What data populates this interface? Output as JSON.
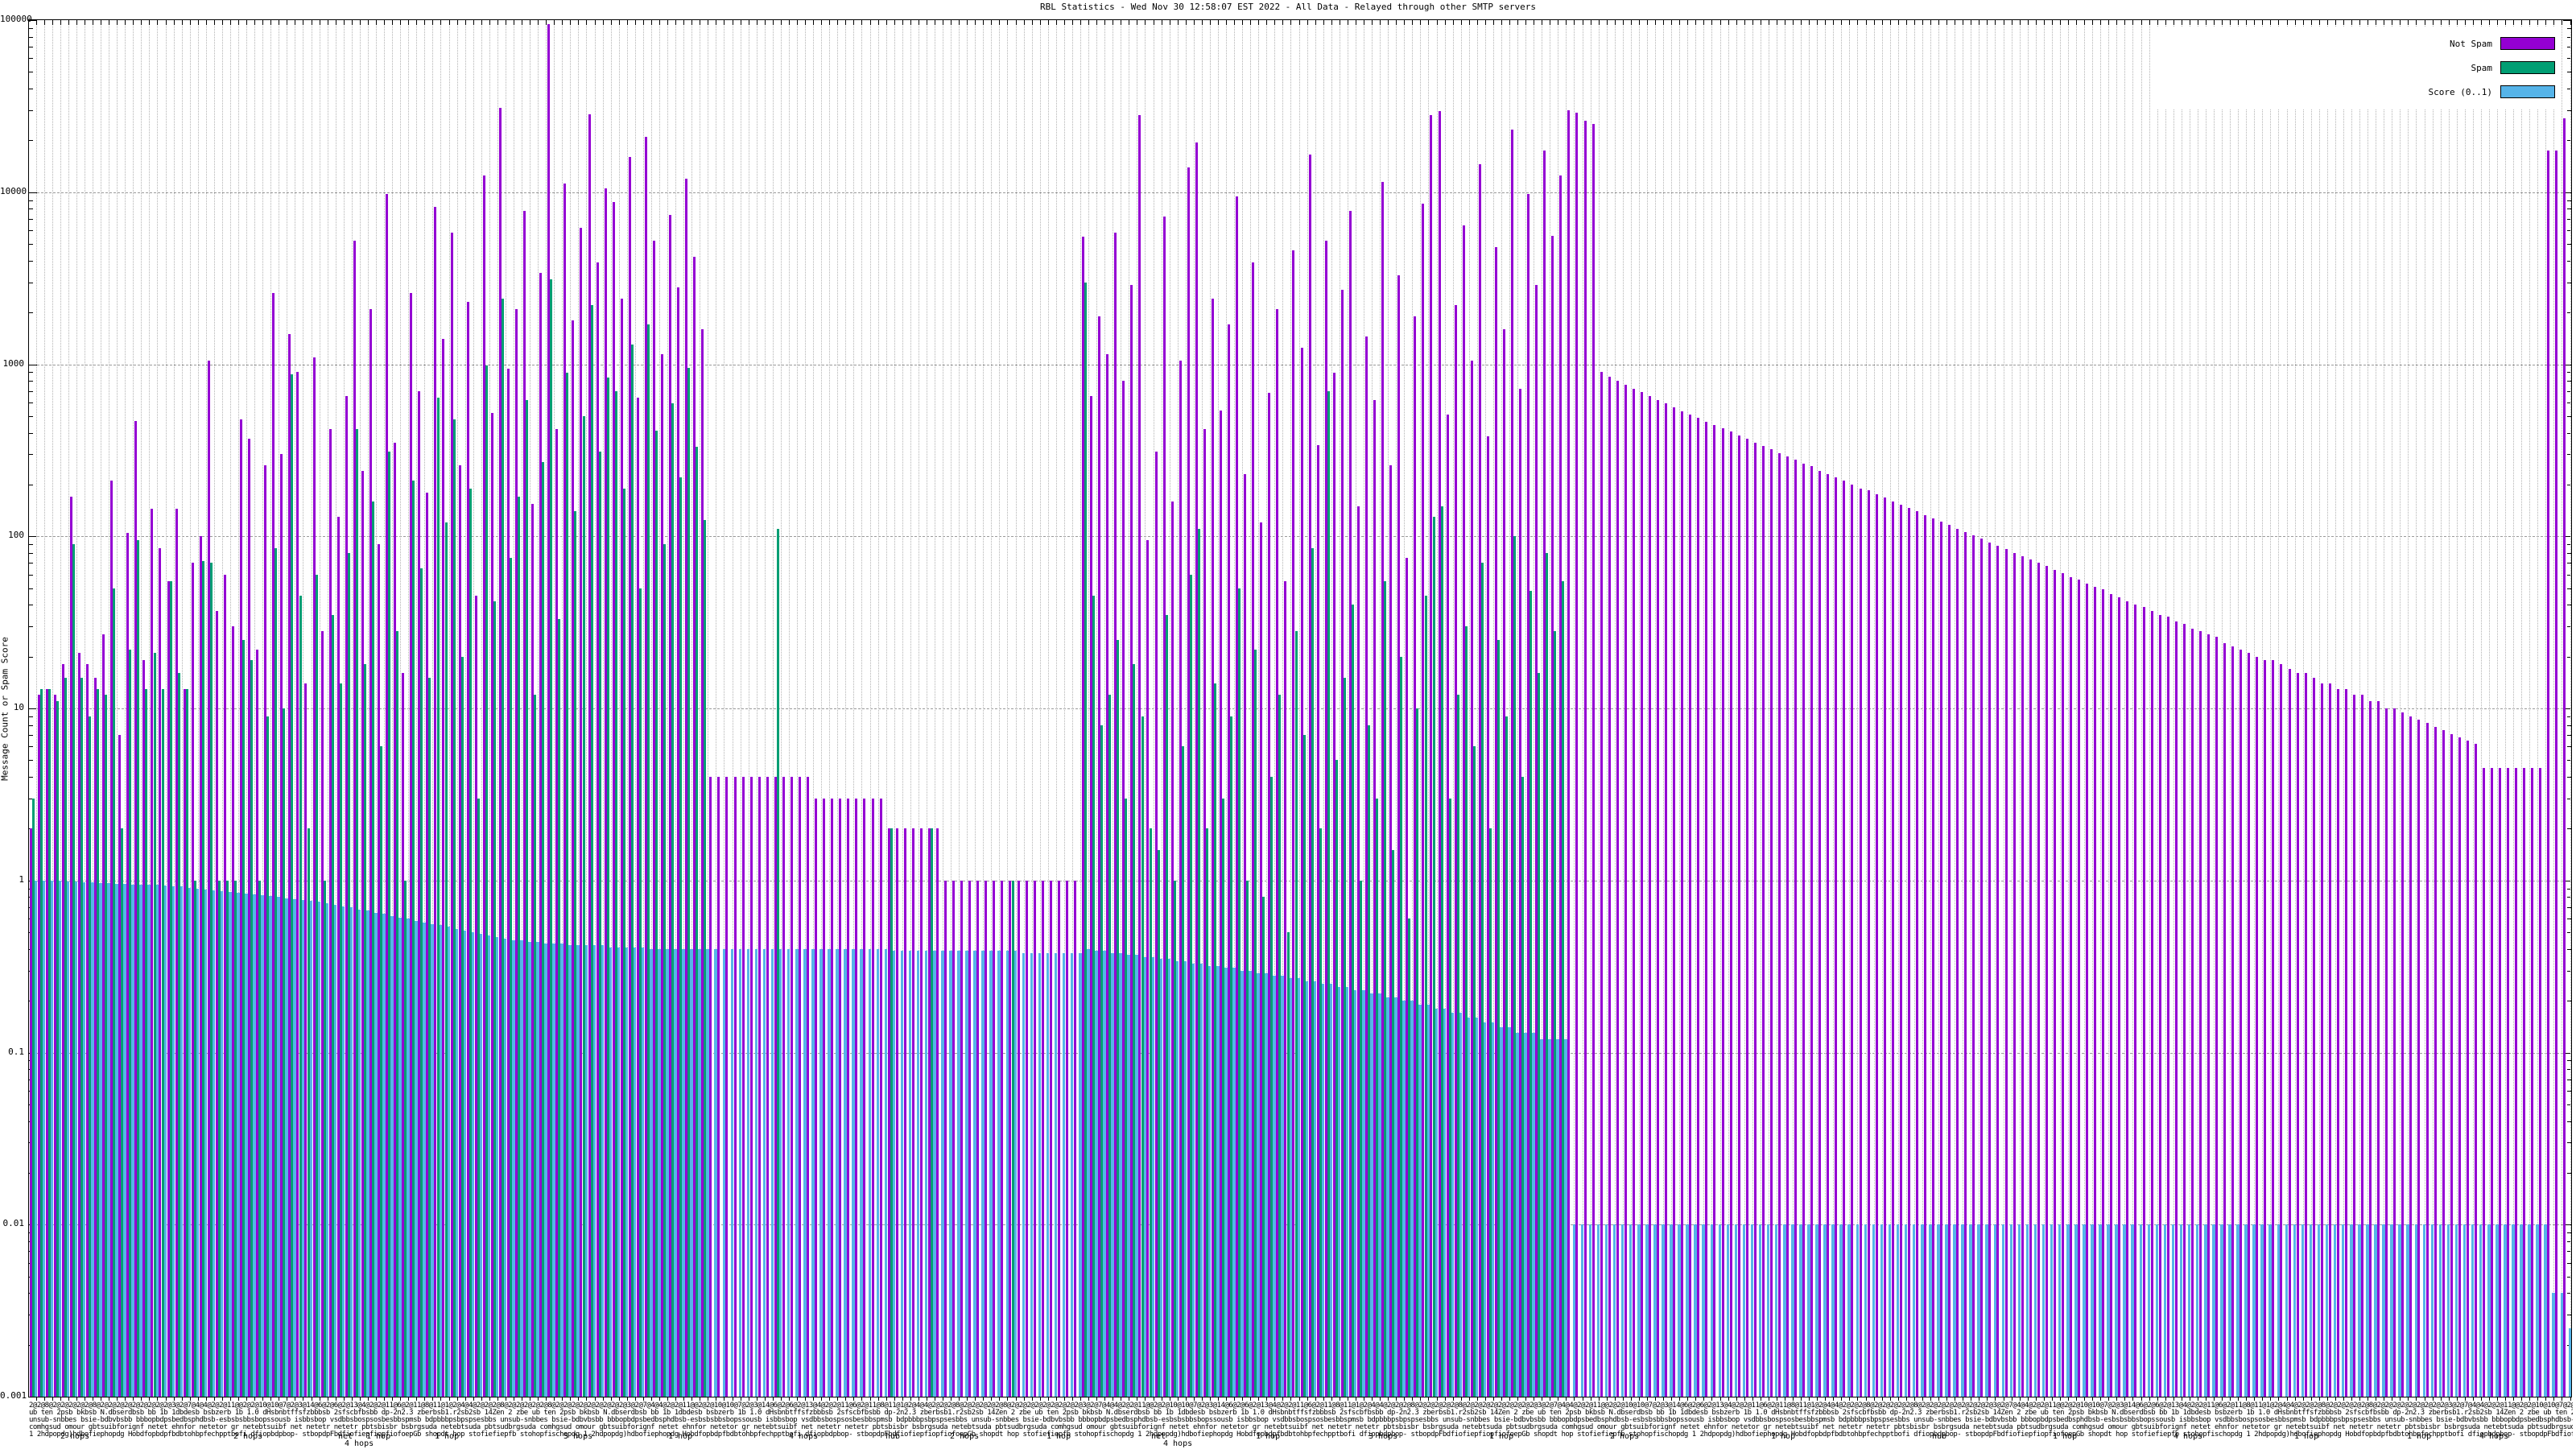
{
  "chart_data": {
    "type": "bar",
    "title": "RBL Statistics - Wed Nov 30 12:58:07 EST 2022 - All Data - Relayed through other SMTP servers",
    "ylabel": "Message Count or Spam Score",
    "xlabel": "",
    "yscale": "log",
    "ylim": [
      0.001,
      100000
    ],
    "grid": true,
    "legend_position": "top-right",
    "ytick_labels": [
      "100000",
      "10000",
      "1000",
      "100",
      "10",
      "1",
      "0.1",
      "0.01",
      "0.001"
    ],
    "legend": [
      {
        "label": "Not Spam",
        "color": "#9400D3"
      },
      {
        "label": "Spam",
        "color": "#009E73"
      },
      {
        "label": "Score (0..1)",
        "color": "#56B4E9"
      }
    ],
    "xtick_note": "hundreds of overlapping multi-line host/score labels, unreadable in source",
    "xtick_lines": [
      "2@2@8@2@2@2@2@2@8@2@2@2@2@2@2@2@2@2@3@2@7@4@4@2@2@11@@2@2@10@10@7@2@3@14@6@2@6@2@13@4@2@2@11@6@2@11@8@11@1@2@4@4@2@",
      "ub ten 2psb bkbsb N.dbserdbsb bb 1b 1dbdesb bsbzerb 1b 1.0 dHsbnbtffsfzbbbsb 2sfscbfbsbb dp-2n2.3 zberbsb1.r2sb2sb 14Zen 2 zbe ",
      "unsub-snbbes bsie-bdbvbsbb bbbopbdpsbedbsphdbsb-esbsbsbbsbopssousb isbbsbop vsdbbsbospsosbesbbspmsb bdpbbbpsbpspsesbbs ",
      "comhgsud omour gbtsuibforignf netet ehnfor netetor gr netebtsuibf net netetr netetr pbtsbisbr bsbrgsuda netebtsuda pbtsudbrgsuda ",
      "1 2hdpopdg)hdbofiephopdg Hobdfopbdpfbdbtohbpfechpptbofi dfiopbdpbop- stbopdpFbdfiofiepfiopfiofoepGb shopdt hop stofiefiepfb stohopfischopdg "
    ],
    "xtick_tokens": [
      {
        "text": "2 hops",
        "x": 75,
        "row": 0
      },
      {
        "text": "2 hops",
        "x": 290,
        "row": 0
      },
      {
        "text": "1 hop",
        "x": 455,
        "row": 0
      },
      {
        "text": "net",
        "x": 420,
        "row": 0
      },
      {
        "text": "4 hops",
        "x": 428,
        "row": 1
      },
      {
        "text": "1 hop",
        "x": 540,
        "row": 0
      },
      {
        "text": "5 hops",
        "x": 700,
        "row": 0
      },
      {
        "text": "1 hop",
        "x": 830,
        "row": 0
      },
      {
        "text": "4 hops",
        "x": 980,
        "row": 0
      },
      {
        "text": "hub",
        "x": 1100,
        "row": 0
      },
      {
        "text": "2 hops",
        "x": 1180,
        "row": 0
      },
      {
        "text": "1 hop",
        "x": 1300,
        "row": 0
      },
      {
        "text": "net",
        "x": 1430,
        "row": 0
      },
      {
        "text": "4 hops",
        "x": 1445,
        "row": 1
      },
      {
        "text": "1 hop",
        "x": 1560,
        "row": 0
      },
      {
        "text": "3 hops",
        "x": 1700,
        "row": 0
      },
      {
        "text": "1 hop",
        "x": 1850,
        "row": 0
      },
      {
        "text": "2 hops",
        "x": 2000,
        "row": 0
      },
      {
        "text": "1 hop",
        "x": 2200,
        "row": 0
      },
      {
        "text": "hub",
        "x": 2400,
        "row": 0
      },
      {
        "text": "1 hop",
        "x": 2550,
        "row": 0
      },
      {
        "text": "4 hops",
        "x": 2700,
        "row": 0
      },
      {
        "text": "1 hop",
        "x": 2850,
        "row": 0
      },
      {
        "text": "1 hop",
        "x": 2990,
        "row": 0
      },
      {
        "text": "4 hops",
        "x": 3080,
        "row": 0
      }
    ],
    "series": [
      {
        "name": "Not Spam",
        "values": [
          2,
          12,
          13,
          12,
          18,
          170,
          21,
          18,
          15,
          27,
          210,
          7,
          105,
          470,
          19,
          145,
          85,
          55,
          145,
          13,
          70,
          100,
          1050,
          37,
          60,
          30,
          480,
          370,
          22,
          260,
          2600,
          300,
          1500,
          900,
          14,
          1100,
          28,
          420,
          130,
          650,
          5200,
          240,
          2100,
          90,
          9800,
          350,
          16,
          2600,
          700,
          180,
          8200,
          1400,
          5800,
          260,
          2300,
          45,
          12500,
          520,
          31000,
          940,
          2100,
          7800,
          155,
          3400,
          95000,
          420,
          11200,
          1800,
          6200,
          28500,
          3900,
          10500,
          8800,
          2400,
          16000,
          640,
          21000,
          5200,
          1150,
          7400,
          2800,
          12000,
          4200,
          1600,
          4,
          4,
          4,
          4,
          4,
          4,
          4,
          4,
          4,
          4,
          4,
          4,
          4,
          3,
          3,
          3,
          3,
          3,
          3,
          3,
          3,
          3,
          2,
          2,
          2,
          2,
          2,
          2,
          2,
          1,
          1,
          1,
          1,
          1,
          1,
          1,
          1,
          1,
          1,
          1,
          1,
          1,
          1,
          1,
          1,
          1,
          5500,
          650,
          1900,
          1150,
          5800,
          800,
          2900,
          28000,
          95,
          310,
          7200,
          160,
          1050,
          14000,
          19500,
          420,
          2400,
          540,
          1700,
          9500,
          230,
          3900,
          120,
          680,
          2100,
          55,
          4600,
          1250,
          16500,
          340,
          5200,
          890,
          2700,
          7800,
          150,
          1450,
          620,
          11500,
          260,
          3300,
          75,
          1900,
          8600,
          28000,
          29500,
          510,
          2200,
          6400,
          1050,
          14500,
          380,
          4800,
          1600,
          23000,
          720,
          9800,
          2900,
          17500,
          5600,
          12500,
          30000,
          29000,
          26000,
          25000,
          900,
          850,
          800,
          760,
          720,
          690,
          650,
          620,
          590,
          560,
          535,
          510,
          490,
          465,
          445,
          425,
          405,
          385,
          370,
          350,
          335,
          320,
          305,
          290,
          280,
          265,
          255,
          240,
          230,
          220,
          210,
          200,
          190,
          185,
          175,
          168,
          160,
          153,
          146,
          140,
          133,
          127,
          122,
          116,
          111,
          106,
          101,
          97,
          92,
          88,
          84,
          80,
          77,
          73,
          70,
          67,
          64,
          61,
          58,
          56,
          53,
          51,
          49,
          46,
          44,
          42,
          40,
          39,
          37,
          35,
          34,
          32,
          31,
          29,
          28,
          27,
          26,
          24,
          23,
          22,
          21,
          20,
          19,
          19,
          18,
          17,
          16,
          16,
          15,
          14,
          14,
          13,
          13,
          12,
          12,
          11,
          11,
          10,
          10,
          9.5,
          9,
          8.6,
          8.2,
          7.8,
          7.5,
          7.1,
          6.8,
          6.5,
          6.2,
          4.5,
          4.5,
          4.5,
          4.5,
          4.5,
          4.5,
          4.5,
          4.5,
          17500,
          17500,
          27000
        ]
      },
      {
        "name": "Spam",
        "values": [
          3,
          13,
          13,
          11,
          15,
          90,
          15,
          9,
          13,
          12,
          50,
          2,
          22,
          95,
          13,
          21,
          13,
          55,
          16,
          13,
          1,
          72,
          70,
          1,
          1,
          1,
          25,
          19,
          1,
          9,
          85,
          10,
          870,
          45,
          2,
          60,
          1,
          35,
          14,
          80,
          420,
          18,
          160,
          6,
          310,
          28,
          1,
          210,
          65,
          15,
          640,
          120,
          480,
          20,
          190,
          3,
          980,
          42,
          2400,
          75,
          170,
          620,
          12,
          270,
          3100,
          33,
          890,
          140,
          500,
          2200,
          310,
          840,
          700,
          190,
          1300,
          50,
          1700,
          410,
          90,
          590,
          220,
          950,
          330,
          125,
          0,
          0,
          0,
          0,
          0,
          0,
          0,
          0,
          110,
          0,
          0,
          0,
          0,
          0,
          0,
          0,
          0,
          0,
          0,
          0,
          0,
          0,
          2,
          0,
          0,
          0,
          0,
          2,
          0,
          0,
          0,
          0,
          0,
          0,
          0,
          0,
          0,
          1,
          0,
          0,
          0,
          0,
          0,
          0,
          0,
          0,
          3000,
          45,
          8,
          12,
          25,
          3,
          18,
          9,
          2,
          1.5,
          35,
          1,
          6,
          60,
          110,
          2,
          14,
          3,
          9,
          50,
          1,
          22,
          0.8,
          4,
          12,
          0.5,
          28,
          7,
          85,
          2,
          700,
          5,
          15,
          40,
          1,
          8,
          3,
          55,
          1.5,
          20,
          0.6,
          10,
          45,
          130,
          150,
          3,
          12,
          30,
          6,
          70,
          2,
          25,
          9,
          100,
          4,
          48,
          16,
          80,
          28,
          55,
          0,
          0,
          0,
          0,
          0,
          0,
          0,
          0,
          0,
          0,
          0,
          0,
          0,
          0,
          0,
          0,
          0,
          0,
          0,
          0,
          0,
          0,
          0,
          0,
          0,
          0,
          0,
          0,
          0,
          0,
          0,
          0,
          0,
          0,
          0,
          0,
          0,
          0,
          0,
          0,
          0,
          0,
          0,
          0,
          0,
          0,
          0,
          0,
          0,
          0,
          0,
          0,
          0,
          0,
          0,
          0,
          0,
          0,
          0,
          0,
          0,
          0,
          0,
          0,
          0,
          0,
          0,
          0,
          0,
          0,
          0,
          0,
          0,
          0,
          0,
          0,
          0,
          0,
          0,
          0,
          0,
          0,
          0,
          0,
          0,
          0,
          0,
          0,
          0,
          0,
          0,
          0,
          0,
          0,
          0,
          0,
          0,
          0,
          0,
          0,
          0,
          0,
          0,
          0,
          0,
          0,
          0,
          0,
          0,
          0,
          0,
          0,
          0,
          0,
          0,
          0,
          0,
          0,
          0,
          0,
          0,
          0,
          0,
          0
        ]
      },
      {
        "name": "Score (0..1)",
        "values": [
          1.0,
          1.0,
          1.0,
          1.0,
          0.99,
          0.99,
          0.98,
          0.98,
          0.97,
          0.97,
          0.96,
          0.96,
          0.95,
          0.95,
          0.94,
          0.94,
          0.93,
          0.92,
          0.92,
          0.91,
          0.9,
          0.89,
          0.88,
          0.87,
          0.86,
          0.85,
          0.84,
          0.83,
          0.82,
          0.81,
          0.8,
          0.79,
          0.78,
          0.77,
          0.76,
          0.75,
          0.74,
          0.72,
          0.71,
          0.7,
          0.68,
          0.67,
          0.65,
          0.64,
          0.62,
          0.61,
          0.6,
          0.58,
          0.57,
          0.56,
          0.55,
          0.54,
          0.52,
          0.51,
          0.5,
          0.49,
          0.48,
          0.47,
          0.46,
          0.45,
          0.45,
          0.44,
          0.44,
          0.43,
          0.43,
          0.43,
          0.42,
          0.42,
          0.42,
          0.42,
          0.42,
          0.41,
          0.41,
          0.41,
          0.41,
          0.41,
          0.4,
          0.4,
          0.4,
          0.4,
          0.4,
          0.4,
          0.4,
          0.4,
          0.4,
          0.4,
          0.4,
          0.4,
          0.4,
          0.4,
          0.4,
          0.4,
          0.4,
          0.4,
          0.4,
          0.4,
          0.4,
          0.4,
          0.4,
          0.4,
          0.4,
          0.4,
          0.4,
          0.4,
          0.4,
          0.4,
          0.39,
          0.39,
          0.39,
          0.39,
          0.39,
          0.39,
          0.39,
          0.39,
          0.39,
          0.39,
          0.39,
          0.39,
          0.39,
          0.39,
          0.39,
          0.39,
          0.38,
          0.38,
          0.38,
          0.38,
          0.38,
          0.38,
          0.38,
          0.38,
          0.4,
          0.39,
          0.39,
          0.38,
          0.38,
          0.37,
          0.37,
          0.36,
          0.36,
          0.35,
          0.35,
          0.34,
          0.34,
          0.33,
          0.33,
          0.32,
          0.32,
          0.31,
          0.31,
          0.3,
          0.3,
          0.29,
          0.29,
          0.28,
          0.28,
          0.27,
          0.27,
          0.26,
          0.26,
          0.25,
          0.25,
          0.24,
          0.24,
          0.23,
          0.23,
          0.22,
          0.22,
          0.21,
          0.21,
          0.2,
          0.2,
          0.19,
          0.19,
          0.18,
          0.18,
          0.17,
          0.17,
          0.16,
          0.16,
          0.15,
          0.15,
          0.14,
          0.14,
          0.13,
          0.13,
          0.13,
          0.12,
          0.12,
          0.12,
          0.12,
          0.01,
          0.01,
          0.01,
          0.01,
          0.01,
          0.01,
          0.01,
          0.01,
          0.01,
          0.01,
          0.01,
          0.01,
          0.01,
          0.01,
          0.01,
          0.01,
          0.01,
          0.01,
          0.01,
          0.01,
          0.01,
          0.01,
          0.01,
          0.01,
          0.01,
          0.01,
          0.01,
          0.01,
          0.01,
          0.01,
          0.01,
          0.01,
          0.01,
          0.01,
          0.01,
          0.01,
          0.01,
          0.01,
          0.01,
          0.01,
          0.01,
          0.01,
          0.01,
          0.01,
          0.01,
          0.01,
          0.01,
          0.01,
          0.01,
          0.01,
          0.01,
          0.01,
          0.01,
          0.01,
          0.01,
          0.01,
          0.01,
          0.01,
          0.01,
          0.01,
          0.01,
          0.01,
          0.01,
          0.01,
          0.01,
          0.01,
          0.01,
          0.01,
          0.01,
          0.01,
          0.01,
          0.01,
          0.01,
          0.01,
          0.01,
          0.01,
          0.01,
          0.01,
          0.01,
          0.01,
          0.01,
          0.01,
          0.01,
          0.01,
          0.01,
          0.01,
          0.01,
          0.01,
          0.01,
          0.01,
          0.01,
          0.01,
          0.01,
          0.01,
          0.01,
          0.01,
          0.01,
          0.01,
          0.01,
          0.01,
          0.01,
          0.01,
          0.01,
          0.01,
          0.01,
          0.01,
          0.01,
          0.01,
          0.01,
          0.01,
          0.01,
          0.01,
          0.01,
          0.01,
          0.01,
          0.01,
          0.01,
          0.01,
          0.01,
          0.01,
          0.01,
          0.004,
          0.004,
          0.0025
        ]
      }
    ]
  }
}
